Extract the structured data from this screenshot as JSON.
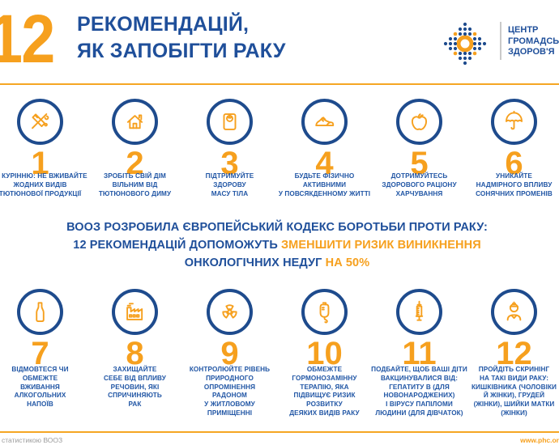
{
  "colors": {
    "orange": "#F6A01E",
    "rule_orange": "#F5A623",
    "text_blue": "#2156A5",
    "title_blue": "#1F4F9A",
    "circle_navy": "#1E4B8D",
    "footer_gray": "#9B9B9B"
  },
  "header": {
    "big_number": "12",
    "title_line1": "РЕКОМЕНДАЦІЙ,",
    "title_line2": "ЯК ЗАПОБІГТИ РАКУ"
  },
  "logo": {
    "icon": "phc-dots-logo",
    "line1": "ЦЕНТР",
    "line2": "ГРОМАДСЬКО",
    "line3": "ЗДОРОВ'Я"
  },
  "banner": {
    "line1": "ВООЗ РОЗРОБИЛА ЄВРОПЕЙСЬКИЙ КОДЕКС БОРОТЬБИ ПРОТИ РАКУ:",
    "line2_blue": "12 РЕКОМЕНДАЦІЙ ДОПОМОЖУТЬ",
    "line2_orange": "ЗМЕНШИТИ РИЗИК ВИНИКНЕННЯ",
    "line3_blue": "ОНКОЛОГІЧНИХ НЕДУГ",
    "line3_orange": "НА 50%"
  },
  "recommendations_row1": [
    {
      "number": "1",
      "icon": "no-smoking-icon",
      "text": "НІ КУРІННЮ: НЕ ВЖИВАЙТЕ\nЖОДНИХ ВИДІВ\nТЮТЮНОВОЇ ПРОДУКЦІЇ"
    },
    {
      "number": "2",
      "icon": "house-icon",
      "text": "ЗРОБІТЬ СВІЙ ДІМ\nВІЛЬНИМ ВІД\nТЮТЮНОВОГО ДИМУ"
    },
    {
      "number": "3",
      "icon": "scale-icon",
      "text": "ПІДТРИМУЙТЕ\nЗДОРОВУ\nМАСУ ТІЛА"
    },
    {
      "number": "4",
      "icon": "sneaker-icon",
      "text": "БУДЬТЕ ФІЗИЧНО\nАКТИВНИМИ\nУ ПОВСЯКДЕННОМУ ЖИТТІ"
    },
    {
      "number": "5",
      "icon": "apple-icon",
      "text": "ДОТРИМУЙТЕСЬ\nЗДОРОВОГО РАЦІОНУ\nХАРЧУВАННЯ"
    },
    {
      "number": "6",
      "icon": "umbrella-icon",
      "text": "УНИКАЙТЕ\nНАДМІРНОГО ВПЛИВУ\nСОНЯЧНИХ ПРОМЕНІВ"
    }
  ],
  "recommendations_row2": [
    {
      "number": "7",
      "icon": "bottle-icon",
      "text": "ВІДМОВТЕСЯ ЧИ\nОБМЕЖТЕ\nВЖИВАННЯ\nАЛКОГОЛЬНИХ\nНАПОЇВ"
    },
    {
      "number": "8",
      "icon": "factory-icon",
      "text": "ЗАХИЩАЙТЕ\nСЕБЕ ВІД ВПЛИВУ\nРЕЧОВИН, ЯКІ\nСПРИЧИНЯЮТЬ\nРАК"
    },
    {
      "number": "9",
      "icon": "radiation-icon",
      "text": "КОНТРОЛЮЙТЕ РІВЕНЬ\nПРИРОДНОГО\nОПРОМІНЕННЯ\nРАДОНОМ\nУ ЖИТЛОВОМУ\nПРИМІЩЕННІ"
    },
    {
      "number": "10",
      "icon": "iv-drip-icon",
      "text": "ОБМЕЖТЕ\nГОРМОНОЗАМІННУ\nТЕРАПІЮ, ЯКА\nПІДВИЩУЄ РИЗИК\nРОЗВИТКУ\nДЕЯКИХ ВИДІВ РАКУ"
    },
    {
      "number": "11",
      "icon": "syringe-icon",
      "text": "ПОДБАЙТЕ, ЩОБ ВАШІ ДІТИ\nВАКЦИНУВАЛИСЯ ВІД:\nГЕПАТИТУ В (ДЛЯ\nНОВОНАРОДЖЕНИХ)\nІ ВІРУСУ ПАПІЛОМИ\nЛЮДИНИ (ДЛЯ ДІВЧАТОК)"
    },
    {
      "number": "12",
      "icon": "doctor-icon",
      "text": "ПРОЙДІТЬ СКРИНІНГ\nНА ТАКІ ВИДИ РАКУ:\nКИШКІВНИКА (ЧОЛОВІКИ\nЙ ЖІНКИ), ГРУДЕЙ\n(ЖІНКИ), ШИЙКИ МАТКИ\n(ЖІНКИ)"
    }
  ],
  "footer": {
    "left_text": "статистикою ВООЗ",
    "right_text": "www.phc.or"
  }
}
